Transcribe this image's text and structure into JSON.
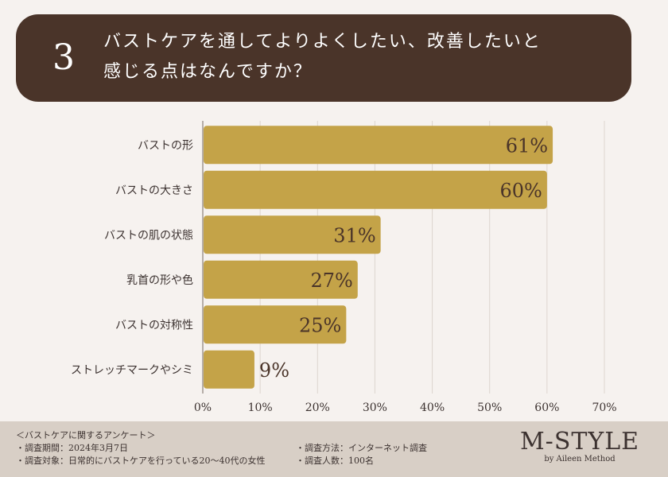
{
  "header": {
    "number": "3",
    "title_line1": "バストケアを通してよりよくしたい、改善したいと",
    "title_line2": "感じる点はなんですか？"
  },
  "colors": {
    "header_bg": "#4a3429",
    "bar": "#c4a348",
    "page_bg": "#f6f2ef",
    "footer_bg": "#d8cfc6"
  },
  "chart_data": {
    "type": "bar",
    "orientation": "horizontal",
    "categories": [
      "バストの形",
      "バストの大きさ",
      "バストの肌の状態",
      "乳首の形や色",
      "バストの対称性",
      "ストレッチマークやシミ"
    ],
    "values": [
      61,
      60,
      31,
      27,
      25,
      9
    ],
    "value_labels": [
      "61%",
      "60%",
      "31%",
      "27%",
      "25%",
      "9%"
    ],
    "xlim": [
      0,
      70
    ],
    "ticks": [
      "0%",
      "10%",
      "20%",
      "30%",
      "40%",
      "50%",
      "60%",
      "70%"
    ],
    "grid": "vertical"
  },
  "footer": {
    "survey_title": "＜バストケアに関するアンケート＞",
    "period": "・調査期間：2024年3月7日",
    "target": "・調査対象：日常的にバストケアを行っている20〜40代の女性",
    "method": "・調査方法：インターネット調査",
    "respondents": "・調査人数：100名"
  },
  "brand": {
    "name": "M-STYLE",
    "tagline": "by Aileen Method"
  }
}
